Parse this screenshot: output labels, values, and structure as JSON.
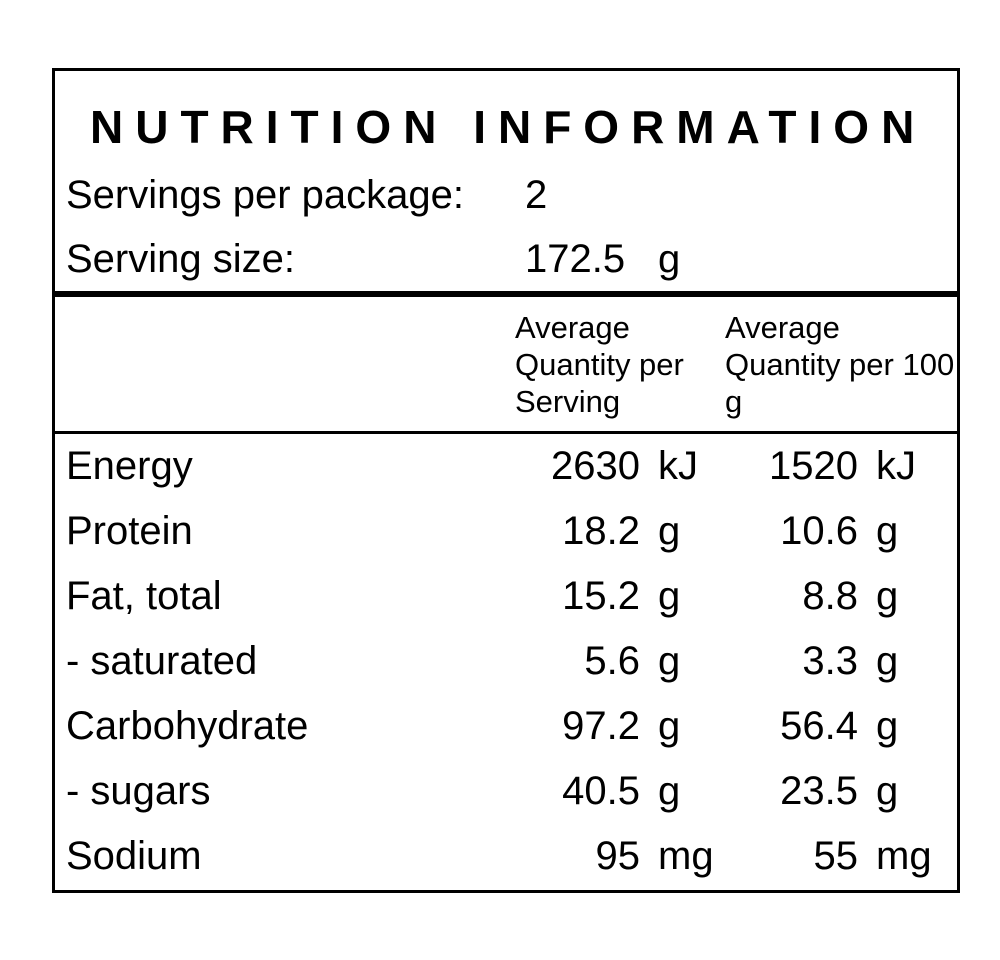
{
  "nutrition_label": {
    "title": "NUTRITION INFORMATION",
    "servings_per_package": {
      "label": "Servings per package:",
      "value": "2"
    },
    "serving_size": {
      "label": "Serving size:",
      "value": "172.5",
      "unit": "g"
    },
    "column_headers": {
      "per_serving": "Average Quantity per Serving",
      "per_100g": "Average Quantity per 100 g"
    },
    "rows": [
      {
        "nutrient": "Energy",
        "per_serving": "2630",
        "per_serving_unit": "kJ",
        "per_100g": "1520",
        "per_100g_unit": "kJ"
      },
      {
        "nutrient": "Protein",
        "per_serving": "18.2",
        "per_serving_unit": "g",
        "per_100g": "10.6",
        "per_100g_unit": "g"
      },
      {
        "nutrient": "Fat, total",
        "per_serving": "15.2",
        "per_serving_unit": "g",
        "per_100g": "8.8",
        "per_100g_unit": "g"
      },
      {
        "nutrient": "- saturated",
        "per_serving": "5.6",
        "per_serving_unit": "g",
        "per_100g": "3.3",
        "per_100g_unit": "g"
      },
      {
        "nutrient": "Carbohydrate",
        "per_serving": "97.2",
        "per_serving_unit": "g",
        "per_100g": "56.4",
        "per_100g_unit": "g"
      },
      {
        "nutrient": "- sugars",
        "per_serving": "40.5",
        "per_serving_unit": "g",
        "per_100g": "23.5",
        "per_100g_unit": "g"
      },
      {
        "nutrient": "Sodium",
        "per_serving": "95",
        "per_serving_unit": "mg",
        "per_100g": "55",
        "per_100g_unit": "mg"
      }
    ],
    "colors": {
      "text": "#000000",
      "border": "#000000",
      "background": "#ffffff"
    }
  }
}
